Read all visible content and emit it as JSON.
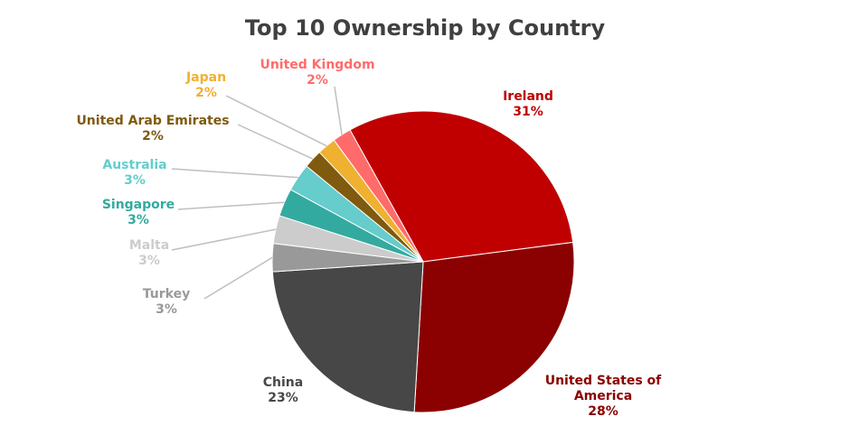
{
  "chart_data": {
    "type": "pie",
    "title": "Top 10 Ownership by Country",
    "categories": [
      "Ireland",
      "United States of America",
      "China",
      "Turkey",
      "Malta",
      "Singapore",
      "Australia",
      "United Arab Emirates",
      "Japan",
      "United Kingdom"
    ],
    "values": [
      31,
      28,
      23,
      3,
      3,
      3,
      3,
      2,
      2,
      2
    ],
    "value_labels": [
      "31%",
      "28%",
      "23%",
      "3%",
      "3%",
      "3%",
      "3%",
      "2%",
      "2%",
      "2%"
    ],
    "colors": [
      "#c00000",
      "#8b0000",
      "#474747",
      "#999999",
      "#cccccc",
      "#33aaa0",
      "#66cccc",
      "#7f5a0f",
      "#f0b030",
      "#ff6b6b"
    ]
  }
}
